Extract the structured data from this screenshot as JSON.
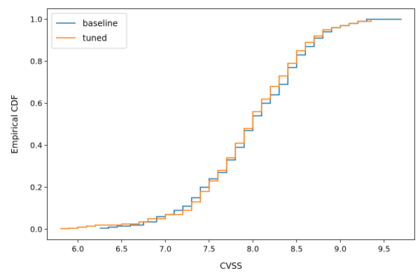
{
  "chart_data": {
    "type": "line",
    "xlabel": "CVSS",
    "ylabel": "Empirical CDF",
    "xlim": [
      5.65,
      9.85
    ],
    "ylim": [
      -0.05,
      1.05
    ],
    "xticks": [
      6.0,
      6.5,
      7.0,
      7.5,
      8.0,
      8.5,
      9.0,
      9.5
    ],
    "xtick_labels": [
      "6.0",
      "6.5",
      "7.0",
      "7.5",
      "8.0",
      "8.5",
      "9.0",
      "9.5"
    ],
    "yticks": [
      0.0,
      0.2,
      0.4,
      0.6,
      0.8,
      1.0
    ],
    "ytick_labels": [
      "0.0",
      "0.2",
      "0.4",
      "0.6",
      "0.8",
      "1.0"
    ],
    "grid": false,
    "legend_position": "upper-left",
    "series": [
      {
        "name": "baseline",
        "color": "#1f77b4",
        "x": [
          6.25,
          6.35,
          6.45,
          6.6,
          6.75,
          6.9,
          7.0,
          7.1,
          7.2,
          7.3,
          7.4,
          7.5,
          7.6,
          7.7,
          7.8,
          7.9,
          8.0,
          8.1,
          8.2,
          8.3,
          8.4,
          8.5,
          8.6,
          8.7,
          8.8,
          8.9,
          9.0,
          9.1,
          9.2,
          9.3,
          9.5,
          9.7
        ],
        "y": [
          0.005,
          0.01,
          0.015,
          0.02,
          0.035,
          0.06,
          0.07,
          0.09,
          0.11,
          0.15,
          0.2,
          0.24,
          0.27,
          0.33,
          0.39,
          0.47,
          0.54,
          0.6,
          0.64,
          0.69,
          0.77,
          0.83,
          0.87,
          0.91,
          0.94,
          0.96,
          0.97,
          0.98,
          0.99,
          1.0,
          1.0,
          1.0
        ]
      },
      {
        "name": "tuned",
        "color": "#ff7f0e",
        "x": [
          5.8,
          5.9,
          6.0,
          6.1,
          6.2,
          6.5,
          6.7,
          6.8,
          7.0,
          7.2,
          7.3,
          7.4,
          7.5,
          7.6,
          7.7,
          7.8,
          7.9,
          8.0,
          8.1,
          8.2,
          8.3,
          8.4,
          8.5,
          8.6,
          8.7,
          8.8,
          8.9,
          9.0,
          9.1,
          9.2,
          9.35
        ],
        "y": [
          0.003,
          0.005,
          0.01,
          0.015,
          0.02,
          0.025,
          0.035,
          0.05,
          0.07,
          0.09,
          0.13,
          0.18,
          0.23,
          0.28,
          0.34,
          0.41,
          0.48,
          0.56,
          0.62,
          0.68,
          0.73,
          0.79,
          0.85,
          0.89,
          0.92,
          0.95,
          0.96,
          0.97,
          0.98,
          0.99,
          1.0
        ]
      }
    ]
  }
}
